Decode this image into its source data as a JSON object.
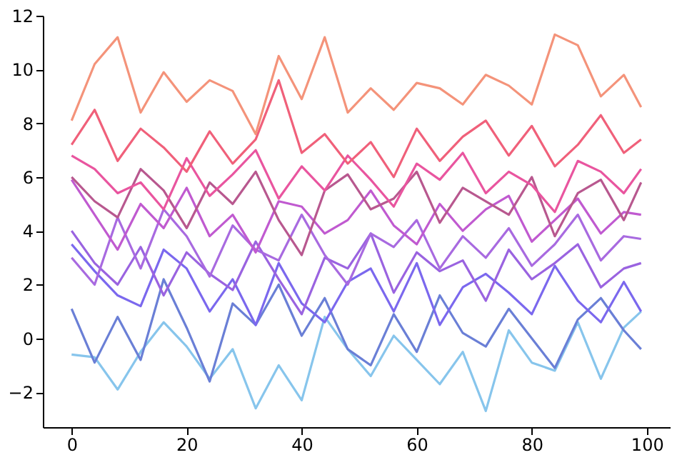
{
  "chart_data": {
    "type": "line",
    "x": [
      0,
      4,
      8,
      12,
      16,
      20,
      24,
      28,
      32,
      36,
      40,
      44,
      48,
      52,
      56,
      60,
      64,
      68,
      72,
      76,
      80,
      84,
      88,
      92,
      96,
      99
    ],
    "xlim": [
      -5,
      104
    ],
    "xticks": [
      0,
      20,
      40,
      60,
      80,
      100
    ],
    "ylim": [
      -3.3,
      12
    ],
    "yticks": [
      -2,
      0,
      2,
      4,
      6,
      8,
      10,
      12
    ],
    "series": [
      {
        "color": "#87c5ec",
        "values": [
          -0.6,
          -0.7,
          -1.9,
          -0.5,
          0.6,
          -0.3,
          -1.5,
          -0.4,
          -2.6,
          -1.0,
          -2.3,
          0.8,
          -0.4,
          -1.4,
          0.1,
          -0.8,
          -1.7,
          -0.5,
          -2.7,
          0.3,
          -0.9,
          -1.2,
          0.6,
          -1.5,
          0.4,
          1.0
        ]
      },
      {
        "color": "#6a7fd6",
        "values": [
          1.1,
          -0.9,
          0.8,
          -0.8,
          2.2,
          0.4,
          -1.6,
          1.3,
          0.5,
          2.0,
          0.1,
          1.5,
          -0.4,
          -1.0,
          0.9,
          -0.5,
          1.6,
          0.2,
          -0.3,
          1.1,
          0.0,
          -1.1,
          0.7,
          1.5,
          0.3,
          -0.4
        ]
      },
      {
        "color": "#7b68ee",
        "values": [
          3.5,
          2.5,
          1.6,
          1.2,
          3.3,
          2.6,
          1.0,
          2.2,
          0.5,
          2.8,
          1.3,
          0.6,
          2.1,
          2.6,
          1.0,
          2.8,
          0.5,
          1.9,
          2.4,
          1.7,
          0.9,
          2.7,
          1.4,
          0.6,
          2.1,
          1.0
        ]
      },
      {
        "color": "#9a63e0",
        "values": [
          4.0,
          2.8,
          2.0,
          3.4,
          1.6,
          3.2,
          2.4,
          1.8,
          3.6,
          2.2,
          0.9,
          3.0,
          2.6,
          3.9,
          1.7,
          3.2,
          2.5,
          2.9,
          1.4,
          3.3,
          2.2,
          2.8,
          3.5,
          1.9,
          2.6,
          2.8
        ]
      },
      {
        "color": "#a86ae0",
        "values": [
          3.0,
          2.0,
          4.5,
          2.6,
          4.8,
          3.8,
          2.3,
          4.2,
          3.3,
          2.9,
          4.6,
          3.1,
          2.0,
          3.9,
          3.4,
          4.4,
          2.6,
          3.8,
          3.0,
          4.1,
          2.7,
          3.5,
          4.6,
          2.9,
          3.8,
          3.7
        ]
      },
      {
        "color": "#c05ad0",
        "values": [
          5.9,
          4.6,
          3.3,
          5.0,
          4.1,
          5.6,
          3.8,
          4.6,
          3.2,
          5.1,
          4.9,
          3.9,
          4.4,
          5.5,
          4.2,
          3.5,
          5.0,
          4.0,
          4.8,
          5.3,
          3.6,
          4.4,
          5.2,
          3.9,
          4.7,
          4.6
        ]
      },
      {
        "color": "#b8588f",
        "values": [
          6.0,
          5.1,
          4.5,
          6.3,
          5.5,
          4.1,
          5.8,
          5.0,
          6.2,
          4.4,
          3.1,
          5.5,
          6.1,
          4.8,
          5.2,
          6.2,
          4.3,
          5.6,
          5.1,
          4.6,
          6.0,
          3.8,
          5.4,
          5.9,
          4.4,
          5.8
        ]
      },
      {
        "color": "#e9559f",
        "values": [
          6.8,
          6.3,
          5.4,
          5.8,
          4.8,
          6.7,
          5.3,
          6.1,
          7.0,
          5.2,
          6.4,
          5.5,
          6.8,
          5.9,
          4.9,
          6.5,
          5.9,
          6.9,
          5.4,
          6.2,
          5.7,
          4.7,
          6.6,
          6.2,
          5.4,
          6.3
        ]
      },
      {
        "color": "#f0607a",
        "values": [
          7.2,
          8.5,
          6.6,
          7.8,
          7.1,
          6.2,
          7.7,
          6.5,
          7.4,
          9.6,
          6.9,
          7.6,
          6.5,
          7.3,
          6.0,
          7.8,
          6.6,
          7.5,
          8.1,
          6.8,
          7.9,
          6.4,
          7.2,
          8.3,
          6.9,
          7.4
        ]
      },
      {
        "color": "#f4937a",
        "values": [
          8.1,
          10.2,
          11.2,
          8.4,
          9.9,
          8.8,
          9.6,
          9.2,
          7.6,
          10.5,
          8.9,
          11.2,
          8.4,
          9.3,
          8.5,
          9.5,
          9.3,
          8.7,
          9.8,
          9.4,
          8.7,
          11.3,
          10.9,
          9.0,
          9.8,
          8.6
        ]
      }
    ]
  }
}
